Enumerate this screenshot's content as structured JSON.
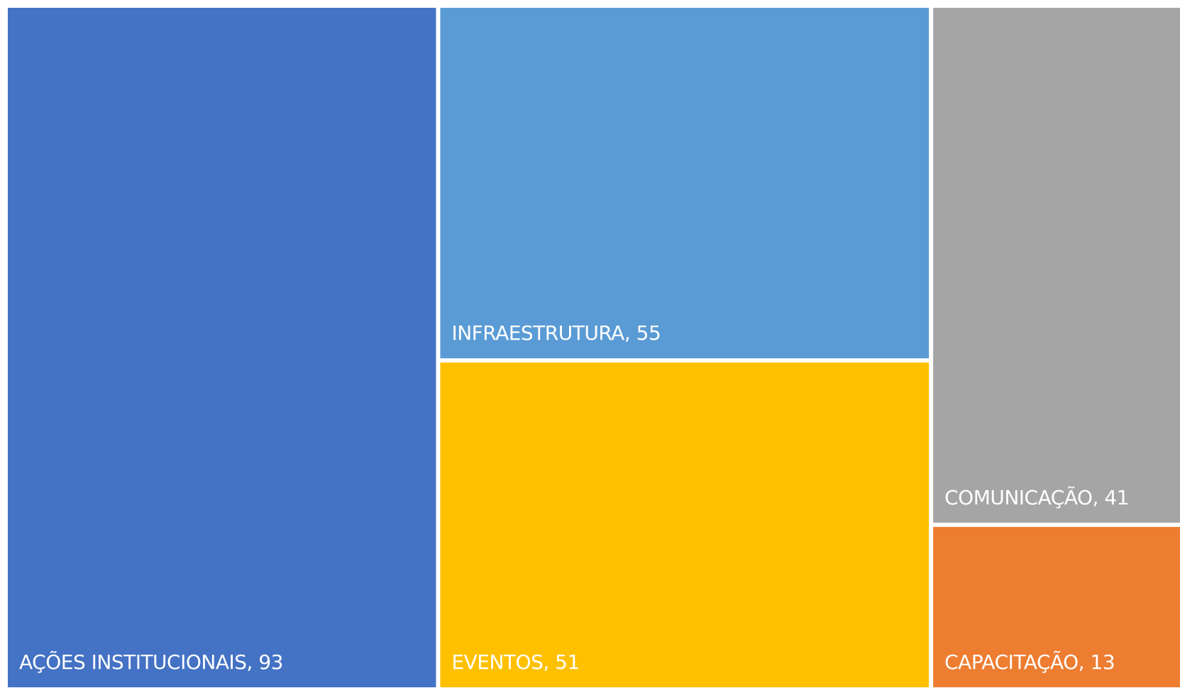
{
  "chart_data": {
    "type": "treemap",
    "categories": [
      "AÇÕES INSTITUCIONAIS",
      "INFRAESTRUTURA",
      "EVENTOS",
      "COMUNICAÇÃO",
      "CAPACITAÇÃO"
    ],
    "values": [
      93,
      55,
      51,
      41,
      13
    ],
    "colors": [
      "#4472c4",
      "#5b9bd5",
      "#ffc000",
      "#a5a5a5",
      "#ed7d31"
    ]
  }
}
